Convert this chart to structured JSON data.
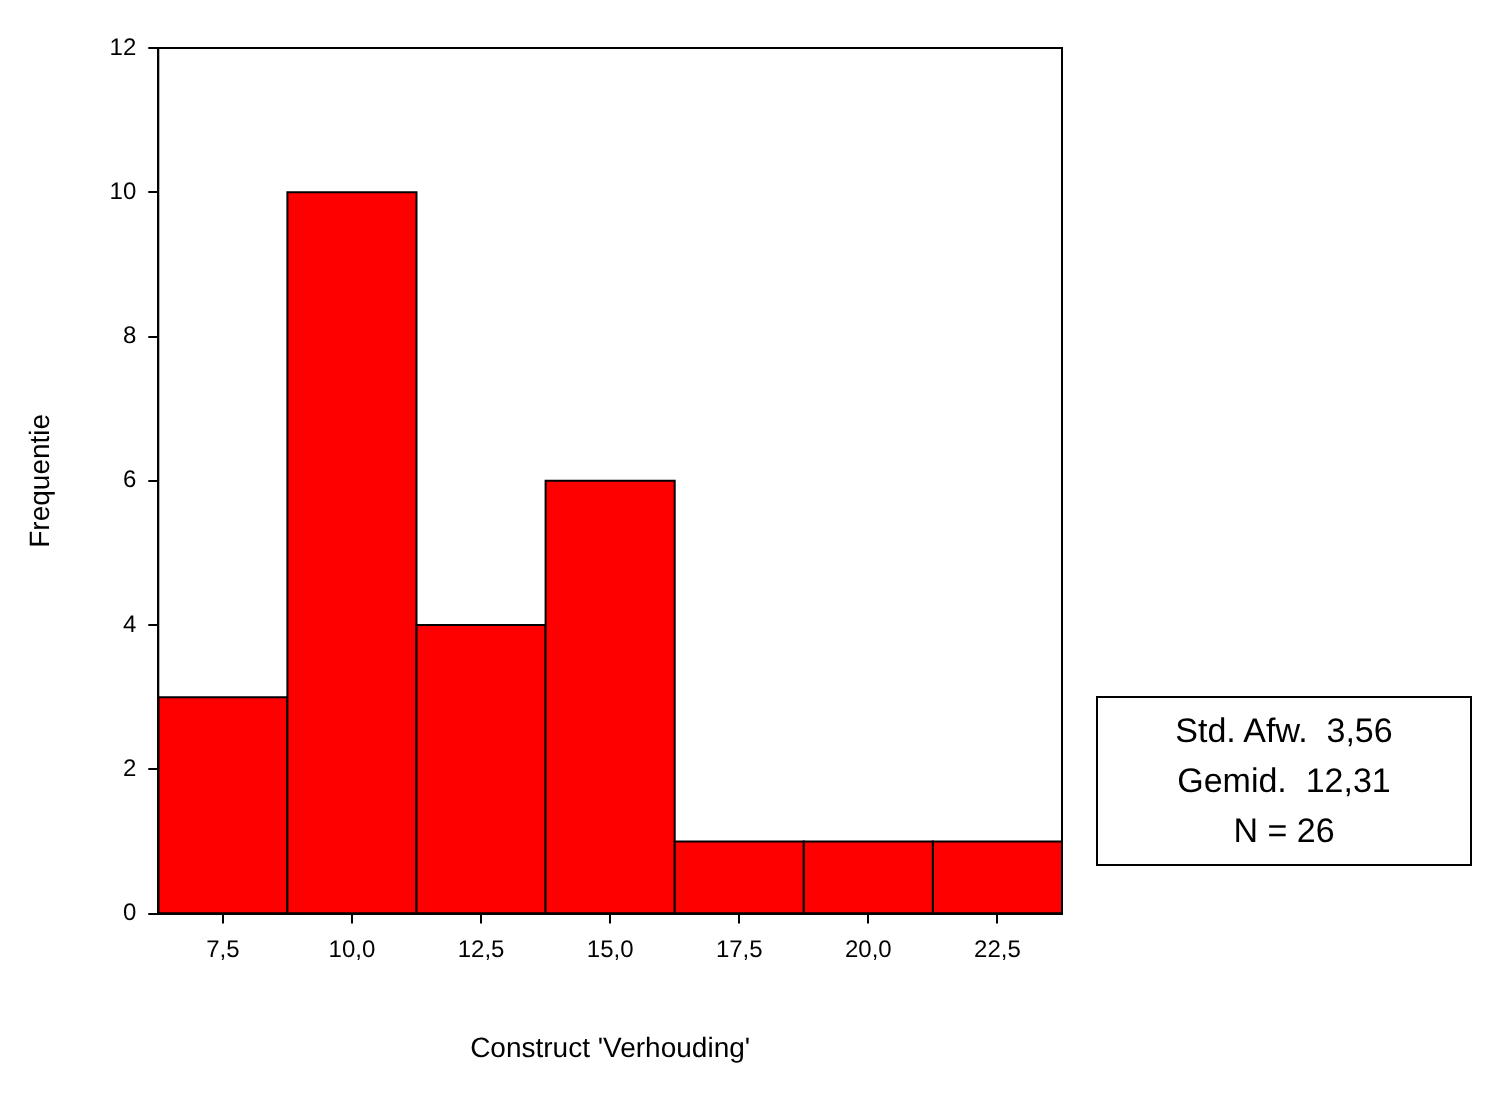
{
  "chart_data": {
    "type": "histogram",
    "xlabel": "Construct 'Verhouding'",
    "ylabel": "Frequentie",
    "bins": [
      6.25,
      8.75,
      11.25,
      13.75,
      16.25,
      18.75,
      21.25,
      23.75
    ],
    "values": [
      3,
      10,
      4,
      6,
      1,
      1,
      1
    ],
    "color": "#ff0000",
    "xlim": [
      6.25,
      23.75
    ],
    "xticks": [
      {
        "value": 7.5,
        "label": "7,5"
      },
      {
        "value": 10,
        "label": "10,0"
      },
      {
        "value": 12.5,
        "label": "12,5"
      },
      {
        "value": 15,
        "label": "15,0"
      },
      {
        "value": 17.5,
        "label": "17,5"
      },
      {
        "value": 20,
        "label": "20,0"
      },
      {
        "value": 22.5,
        "label": "22,5"
      }
    ],
    "ylim": [
      0,
      12
    ],
    "yticks": [
      0,
      2,
      4,
      6,
      8,
      10,
      12
    ],
    "grid": false,
    "legend": false,
    "annotations": [
      "Std. Afw.  3,56",
      "Gemid.  12,31",
      "N = 26"
    ]
  }
}
